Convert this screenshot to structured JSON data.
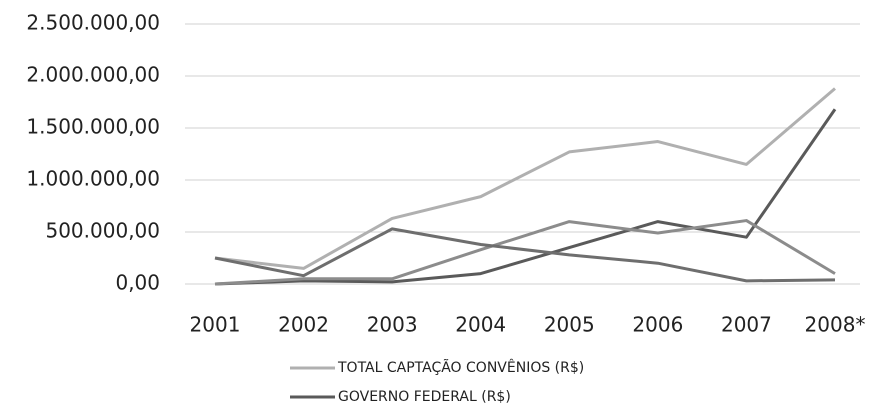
{
  "chart_data": {
    "type": "line",
    "categories": [
      "2001",
      "2002",
      "2003",
      "2004",
      "2005",
      "2006",
      "2007",
      "2008*"
    ],
    "series": [
      {
        "name": "TOTAL CAPTAÇÃO CONVÊNIOS (R$)",
        "color": "#b0b0b0",
        "values": [
          250000,
          150000,
          630000,
          840000,
          1270000,
          1370000,
          1150000,
          1880000
        ]
      },
      {
        "name": "GOVERNO FEDERAL (R$)",
        "color": "#5a5a5a",
        "values": [
          0,
          30000,
          20000,
          100000,
          350000,
          600000,
          450000,
          1680000
        ]
      },
      {
        "color": "#8c8c8c",
        "values": [
          0,
          50000,
          50000,
          330000,
          600000,
          490000,
          610000,
          100000
        ]
      },
      {
        "color": "#6e6e6e",
        "values": [
          250000,
          80000,
          530000,
          380000,
          280000,
          200000,
          30000,
          40000
        ]
      }
    ],
    "ylim": [
      0,
      2500000
    ],
    "yticks": [
      {
        "value": 0,
        "label": "0,00"
      },
      {
        "value": 500000,
        "label": "500.000,00"
      },
      {
        "value": 1000000,
        "label": "1.000.000,00"
      },
      {
        "value": 1500000,
        "label": "1.500.000,00"
      },
      {
        "value": 2000000,
        "label": "2.000.000,00"
      },
      {
        "value": 2500000,
        "label": "2.500.000,00"
      }
    ],
    "grid": true
  }
}
